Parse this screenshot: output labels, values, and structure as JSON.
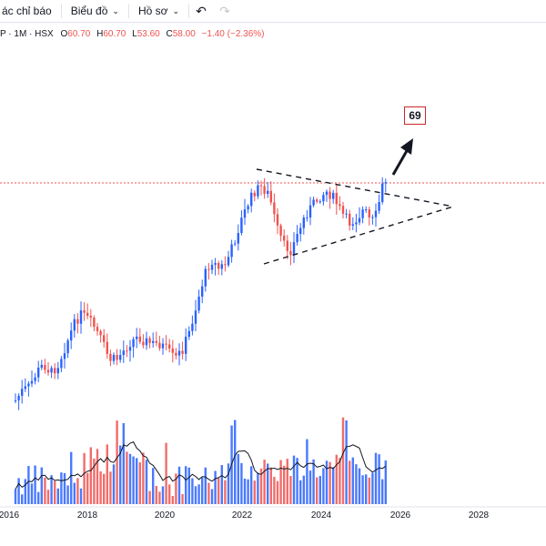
{
  "toolbar": {
    "indicators_label": "ác chỉ báo",
    "chart_label": "Biểu đồ",
    "profile_label": "Hồ sơ"
  },
  "legend": {
    "title": "P · 1M · HSX",
    "open_label": "O",
    "open_value": "60.70",
    "high_label": "H",
    "high_value": "60.70",
    "low_label": "L",
    "low_value": "53.60",
    "close_label": "C",
    "close_value": "58.00",
    "change": "−1.40 (−2.36%)"
  },
  "annotation": {
    "target": "69"
  },
  "colors": {
    "up": "#2962ff",
    "down": "#ef5350",
    "ma": "#131722",
    "annotation_border": "#c62828"
  },
  "chart_data": {
    "type": "candlestick",
    "interval": "1M",
    "exchange": "HSX",
    "x_ticks": [
      "2016",
      "2018",
      "2020",
      "2022",
      "2024",
      "2026",
      "2028"
    ],
    "last_price": 58.0,
    "target_price": 69,
    "patterns": [
      "symmetrical-triangle",
      "breakout-arrow-up"
    ],
    "panels": [
      "price",
      "volume"
    ],
    "volume_ma": true
  }
}
